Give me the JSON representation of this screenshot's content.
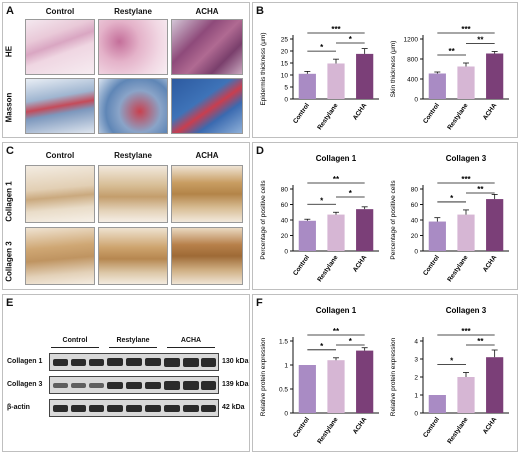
{
  "panels": {
    "A": {
      "letter": "A",
      "columns": [
        "Control",
        "Restylane",
        "ACHA"
      ],
      "rows": [
        "HE",
        "Masson"
      ]
    },
    "B": {
      "letter": "B"
    },
    "C": {
      "letter": "C",
      "columns": [
        "Control",
        "Restylane",
        "ACHA"
      ],
      "rows": [
        "Collagen 1",
        "Collagen 3"
      ]
    },
    "D": {
      "letter": "D"
    },
    "E": {
      "letter": "E",
      "groups": [
        "Control",
        "Restylane",
        "ACHA"
      ],
      "blots": [
        {
          "label": "Collagen 1",
          "size": "130 kDa"
        },
        {
          "label": "Collagen 3",
          "size": "139 kDa"
        },
        {
          "label": "β-actin",
          "size": "42 kDa"
        }
      ]
    },
    "F": {
      "letter": "F"
    }
  },
  "colors": {
    "control": "#a98bc4",
    "restylane": "#d6b6d4",
    "acha": "#7b3f78"
  },
  "chart_data": [
    {
      "id": "B1",
      "type": "bar",
      "title": "",
      "ylabel": "Epidermis thickness (μm)",
      "categories": [
        "Control",
        "Restylane",
        "ACHA"
      ],
      "values": [
        10.5,
        14.8,
        18.8
      ],
      "errors": [
        1.0,
        1.8,
        2.2
      ],
      "ylim": [
        0,
        25
      ],
      "yticks": [
        0,
        5,
        10,
        15,
        20,
        25
      ],
      "significance": [
        {
          "a": 0,
          "b": 1,
          "label": "*"
        },
        {
          "a": 1,
          "b": 2,
          "label": "*"
        },
        {
          "a": 0,
          "b": 2,
          "label": "***"
        }
      ]
    },
    {
      "id": "B2",
      "type": "bar",
      "title": "",
      "ylabel": "Skin thickness (μm)",
      "categories": [
        "Control",
        "Restylane",
        "ACHA"
      ],
      "values": [
        510,
        650,
        910
      ],
      "errors": [
        30,
        70,
        40
      ],
      "ylim": [
        0,
        1200
      ],
      "yticks": [
        0,
        400,
        800,
        1200
      ],
      "significance": [
        {
          "a": 0,
          "b": 1,
          "label": "**"
        },
        {
          "a": 1,
          "b": 2,
          "label": "**"
        },
        {
          "a": 0,
          "b": 2,
          "label": "***"
        }
      ]
    },
    {
      "id": "D1",
      "type": "bar",
      "title": "Collagen 1",
      "ylabel": "Percentage of positive cells",
      "categories": [
        "Control",
        "Restylane",
        "ACHA"
      ],
      "values": [
        39,
        47,
        54
      ],
      "errors": [
        2,
        3,
        3
      ],
      "ylim": [
        0,
        80
      ],
      "yticks": [
        0,
        20,
        40,
        60,
        80
      ],
      "significance": [
        {
          "a": 0,
          "b": 1,
          "label": "*"
        },
        {
          "a": 1,
          "b": 2,
          "label": "*"
        },
        {
          "a": 0,
          "b": 2,
          "label": "**"
        }
      ]
    },
    {
      "id": "D2",
      "type": "bar",
      "title": "Collagen 3",
      "ylabel": "Percentage of positive cells",
      "categories": [
        "Control",
        "Restylane",
        "ACHA"
      ],
      "values": [
        38,
        47,
        67
      ],
      "errors": [
        5,
        6,
        6
      ],
      "ylim": [
        0,
        80
      ],
      "yticks": [
        0,
        20,
        40,
        60,
        80
      ],
      "significance": [
        {
          "a": 0,
          "b": 1,
          "label": "*"
        },
        {
          "a": 1,
          "b": 2,
          "label": "**"
        },
        {
          "a": 0,
          "b": 2,
          "label": "***"
        }
      ]
    },
    {
      "id": "F1",
      "type": "bar",
      "title": "Collagen 1",
      "ylabel": "Relative protein expression",
      "categories": [
        "Control",
        "Restylane",
        "ACHA"
      ],
      "values": [
        1.0,
        1.1,
        1.3
      ],
      "errors": [
        0,
        0.05,
        0.06
      ],
      "ylim": [
        0,
        1.5
      ],
      "yticks": [
        0.0,
        0.5,
        1.0,
        1.5
      ],
      "significance": [
        {
          "a": 0,
          "b": 1,
          "label": "*"
        },
        {
          "a": 1,
          "b": 2,
          "label": "*"
        },
        {
          "a": 0,
          "b": 2,
          "label": "**"
        }
      ]
    },
    {
      "id": "F2",
      "type": "bar",
      "title": "Collagen 3",
      "ylabel": "Relative protein expression",
      "categories": [
        "Control",
        "Restylane",
        "ACHA"
      ],
      "values": [
        1.0,
        2.0,
        3.1
      ],
      "errors": [
        0,
        0.25,
        0.4
      ],
      "ylim": [
        0,
        4
      ],
      "yticks": [
        0,
        1,
        2,
        3,
        4
      ],
      "significance": [
        {
          "a": 0,
          "b": 1,
          "label": "*"
        },
        {
          "a": 1,
          "b": 2,
          "label": "**"
        },
        {
          "a": 0,
          "b": 2,
          "label": "***"
        }
      ]
    }
  ]
}
